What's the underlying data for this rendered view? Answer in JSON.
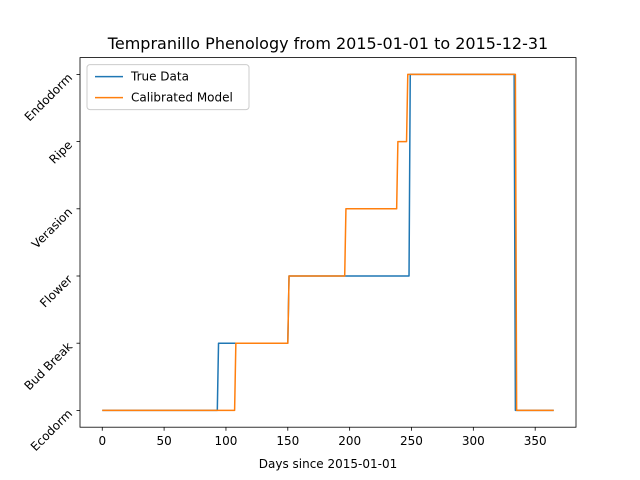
{
  "chart_data": {
    "type": "line",
    "title": "Tempranillo Phenology from 2015-01-01 to 2015-12-31",
    "xlabel": "Days since 2015-01-01",
    "ylabel": "",
    "xlim": [
      -18,
      383
    ],
    "ylim": [
      -0.25,
      5.25
    ],
    "x_ticks": [
      0,
      50,
      100,
      150,
      200,
      250,
      300,
      350
    ],
    "y_ticks": [
      0,
      1,
      2,
      3,
      4,
      5
    ],
    "y_tick_labels": [
      "Ecodorm",
      "Bud Break",
      "Flower",
      "Verasion",
      "Ripe",
      "Endodorm"
    ],
    "legend_position": "top-left",
    "grid": false,
    "series": [
      {
        "name": "True Data",
        "color": "#1f77b4",
        "points": [
          [
            0,
            0
          ],
          [
            93,
            0
          ],
          [
            94,
            1
          ],
          [
            150,
            1
          ],
          [
            151,
            2
          ],
          [
            248,
            2
          ],
          [
            249,
            5
          ],
          [
            333,
            5
          ],
          [
            334,
            0
          ],
          [
            365,
            0
          ]
        ]
      },
      {
        "name": "Calibrated Model",
        "color": "#ff7f0e",
        "points": [
          [
            0,
            0
          ],
          [
            107,
            0
          ],
          [
            108,
            1
          ],
          [
            150,
            1
          ],
          [
            151,
            2
          ],
          [
            196,
            2
          ],
          [
            197,
            3
          ],
          [
            238,
            3
          ],
          [
            239,
            4
          ],
          [
            246,
            4
          ],
          [
            247,
            5
          ],
          [
            334,
            5
          ],
          [
            335,
            0
          ],
          [
            365,
            0
          ]
        ]
      }
    ]
  }
}
